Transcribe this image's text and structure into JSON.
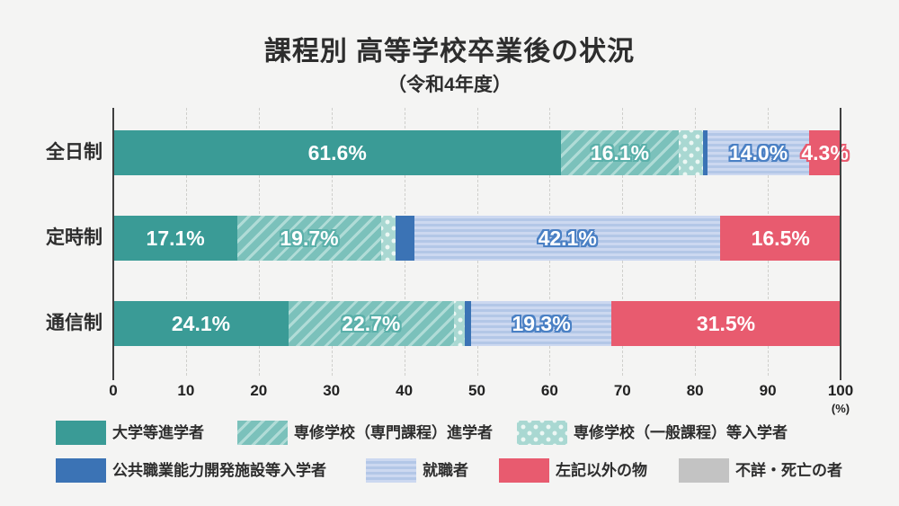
{
  "title": "課程別 高等学校卒業後の状況",
  "subtitle": "（令和4年度）",
  "axis": {
    "ticks": [
      0,
      10,
      20,
      30,
      40,
      50,
      60,
      70,
      80,
      90,
      100
    ],
    "unit_label": "(%)"
  },
  "chart_data": {
    "type": "bar",
    "variant": "horizontal-stacked-100pct",
    "title": "課程別 高等学校卒業後の状況",
    "subtitle": "（令和4年度）",
    "categories": [
      "全日制",
      "定時制",
      "通信制"
    ],
    "xlim": [
      0,
      100
    ],
    "tick_step": 10,
    "grid": true,
    "legend_position": "bottom",
    "series": [
      {
        "name": "大学等進学者",
        "style": "teal-solid",
        "values": [
          61.6,
          17.1,
          24.1
        ],
        "labels": [
          "61.6%",
          "17.1%",
          "24.1%"
        ]
      },
      {
        "name": "専修学校（専門課程）進学者",
        "style": "teal-diagonal",
        "values": [
          16.1,
          19.7,
          22.7
        ],
        "labels": [
          "16.1%",
          "19.7%",
          "22.7%"
        ]
      },
      {
        "name": "専修学校（一般課程）等入学者",
        "style": "mint-dotted",
        "values": [
          3.4,
          2.0,
          1.5
        ],
        "labels": [
          null,
          null,
          null
        ]
      },
      {
        "name": "公共職業能力開発施設等入学者",
        "style": "blue-solid",
        "values": [
          0.6,
          2.6,
          0.9
        ],
        "labels": [
          null,
          null,
          null
        ]
      },
      {
        "name": "就職者",
        "style": "blue-hstripe",
        "values": [
          14.0,
          42.1,
          19.3
        ],
        "labels": [
          "14.0%",
          "42.1%",
          "19.3%"
        ]
      },
      {
        "name": "左記以外の物",
        "style": "red-solid",
        "values": [
          4.3,
          16.5,
          31.5
        ],
        "labels": [
          "4.3%",
          "16.5%",
          "31.5%"
        ]
      },
      {
        "name": "不詳・死亡の者",
        "style": "gray-solid",
        "values": [
          0,
          0,
          0
        ],
        "labels": [
          null,
          null,
          null
        ]
      }
    ]
  },
  "legend": {
    "rows": [
      [
        {
          "label": "大学等進学者",
          "style": "teal-solid"
        },
        {
          "label": "専修学校（専門課程）進学者",
          "style": "teal-diagonal"
        },
        {
          "label": "専修学校（一般課程）等入学者",
          "style": "mint-dotted"
        }
      ],
      [
        {
          "label": "公共職業能力開発施設等入学者",
          "style": "blue-solid"
        },
        {
          "label": "就職者",
          "style": "blue-hstripe"
        },
        {
          "label": "左記以外の物",
          "style": "red-solid"
        },
        {
          "label": "不詳・死亡の者",
          "style": "gray-solid"
        }
      ]
    ]
  },
  "colors": {
    "background": "#f4f4f3",
    "teal": "#3a9b96",
    "teal_light": "#7bc1bb",
    "mint": "#a9d8d2",
    "blue": "#3b73b5",
    "light_blue": "#b3c7e7",
    "red": "#e85b6f",
    "gray": "#c3c3c3",
    "text": "#2d2d2d",
    "axis_line": "#3f3f3f"
  }
}
